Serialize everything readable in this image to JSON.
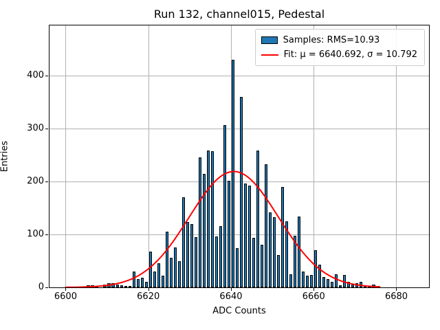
{
  "title": "Run 132, channel015, Pedestal",
  "axes": {
    "xlabel": "ADC Counts",
    "ylabel": "Entries",
    "x_ticks": [
      6600,
      6620,
      6640,
      6660,
      6680
    ],
    "y_ticks": [
      0,
      100,
      200,
      300,
      400
    ],
    "grid": true
  },
  "legend": {
    "position": "upper right",
    "items": [
      {
        "swatch": "patch",
        "color": "#1f77b4",
        "label": "Samples: RMS=10.93"
      },
      {
        "swatch": "line",
        "color": "#ff0000",
        "label": "Fit: μ = 6640.692, σ = 10.792"
      }
    ]
  },
  "colors": {
    "bar_fill": "#1f77b4",
    "bar_edge": "#000000",
    "fit_line": "#ff0000",
    "grid": "#b0b0b0",
    "background": "#ffffff"
  },
  "chart_data": {
    "type": "bar",
    "subtype": "histogram",
    "title": "Run 132, channel015, Pedestal",
    "xlabel": "ADC Counts",
    "ylabel": "Entries",
    "xlim": [
      6596.1,
      6687.9
    ],
    "ylim": [
      0,
      495
    ],
    "x_ticks": [
      6600,
      6620,
      6640,
      6660,
      6680
    ],
    "y_ticks": [
      0,
      100,
      200,
      300,
      400
    ],
    "grid": true,
    "legend_position": "upper right",
    "bin_width": 1,
    "bin_starts": [
      6605,
      6606,
      6607,
      6608,
      6609,
      6610,
      6611,
      6612,
      6613,
      6614,
      6615,
      6616,
      6617,
      6618,
      6619,
      6620,
      6621,
      6622,
      6623,
      6624,
      6625,
      6626,
      6627,
      6628,
      6629,
      6630,
      6631,
      6632,
      6633,
      6634,
      6635,
      6636,
      6637,
      6638,
      6639,
      6640,
      6641,
      6642,
      6643,
      6644,
      6645,
      6646,
      6647,
      6648,
      6649,
      6650,
      6651,
      6652,
      6653,
      6654,
      6655,
      6656,
      6657,
      6658,
      6659,
      6660,
      6661,
      6662,
      6663,
      6664,
      6665,
      6666,
      6667,
      6668,
      6669,
      6670,
      6671,
      6672,
      6673,
      6674,
      6675
    ],
    "values": [
      4,
      4,
      3,
      0,
      5,
      8,
      8,
      5,
      4,
      3,
      3,
      30,
      15,
      18,
      10,
      68,
      30,
      45,
      22,
      105,
      56,
      76,
      50,
      170,
      124,
      119,
      95,
      246,
      215,
      258,
      257,
      96,
      115,
      307,
      202,
      430,
      74,
      360,
      196,
      192,
      94,
      258,
      81,
      232,
      141,
      132,
      61,
      190,
      125,
      25,
      97,
      134,
      30,
      22,
      24,
      70,
      43,
      19,
      15,
      10,
      25,
      4,
      23,
      10,
      5,
      8,
      10,
      4,
      3,
      5,
      3
    ],
    "series": [
      {
        "name": "Samples: RMS=10.93",
        "kind": "histogram",
        "color": "#1f77b4",
        "rms": 10.93
      },
      {
        "name": "Fit: μ = 6640.692, σ = 10.792",
        "kind": "gaussian-fit",
        "color": "#ff0000",
        "mu": 6640.692,
        "sigma": 10.792,
        "amplitude": 219,
        "x_range": [
          6600,
          6676
        ]
      }
    ]
  }
}
